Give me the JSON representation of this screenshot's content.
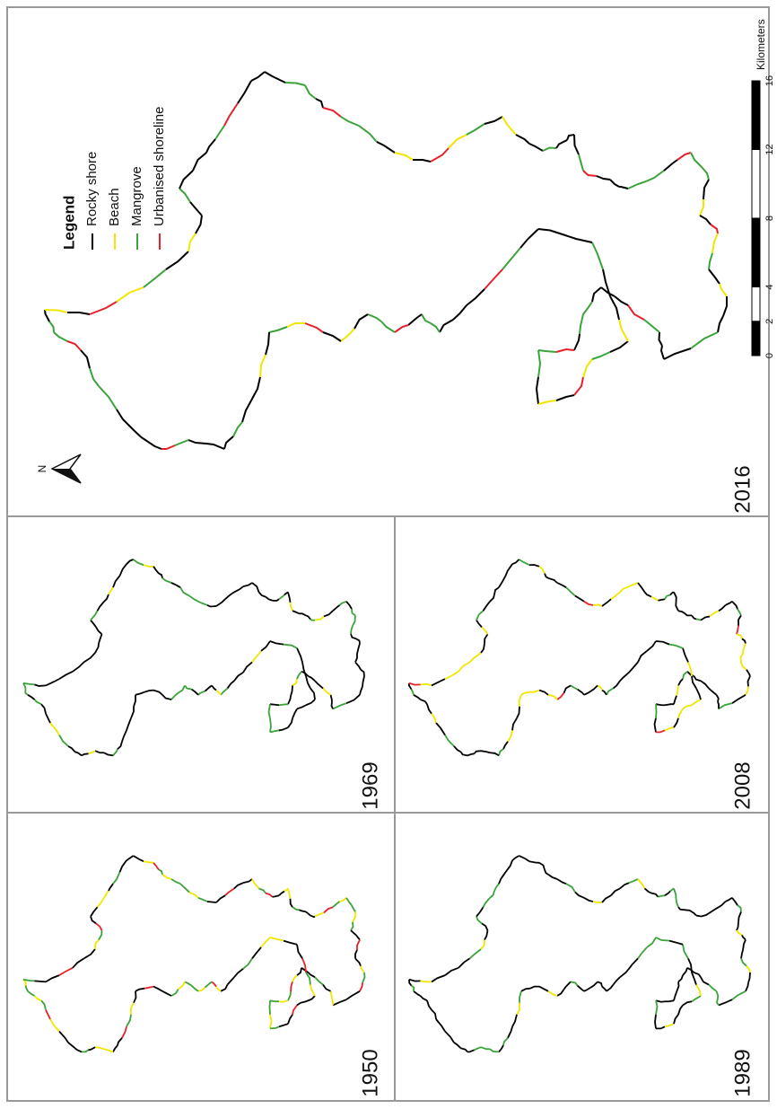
{
  "panels": [
    {
      "year": "2016"
    },
    {
      "year": "1969"
    },
    {
      "year": "1950"
    },
    {
      "year": "2008"
    },
    {
      "year": "1989"
    }
  ],
  "legend": {
    "title": "Legend",
    "items": [
      {
        "label": "Rocky shore",
        "color": "#000000"
      },
      {
        "label": "Beach",
        "color": "#f2e600"
      },
      {
        "label": "Mangrove",
        "color": "#3aa33a"
      },
      {
        "label": "Urbanised shoreline",
        "color": "#e8202a"
      }
    ]
  },
  "scale_bar": {
    "unit": "Kilometers",
    "ticks": [
      0,
      2,
      4,
      8,
      12,
      16
    ]
  },
  "north": "N"
}
